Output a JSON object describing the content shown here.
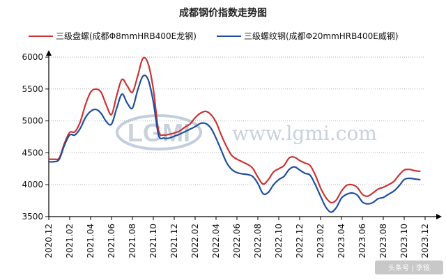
{
  "chart_data": {
    "type": "line",
    "title": "成都钢价指数走势图",
    "xlabel": "",
    "ylabel": "",
    "ylim": [
      3500,
      6000
    ],
    "yticks": [
      3500,
      4000,
      4500,
      5000,
      5500,
      6000
    ],
    "xticks": [
      "2020.12",
      "2021.02",
      "2021.04",
      "2021.06",
      "2021.08",
      "2021.10",
      "2021.12",
      "2022.02",
      "2022.04",
      "2022.06",
      "2022.08",
      "2022.10",
      "2022.12",
      "2023.02",
      "2023.04",
      "2023.06",
      "2023.08",
      "2023.10",
      "2023.12"
    ],
    "x_range_months": [
      0,
      36
    ],
    "grid": "horizontal",
    "legend_position": "top",
    "series": [
      {
        "name": "三级盘螺(成都Φ8mmHRB400E龙钢)",
        "color": "#cc3333",
        "points": [
          [
            0,
            4400
          ],
          [
            0.5,
            4400
          ],
          [
            1,
            4420
          ],
          [
            1.5,
            4650
          ],
          [
            2,
            4820
          ],
          [
            2.5,
            4830
          ],
          [
            3,
            4980
          ],
          [
            3.5,
            5250
          ],
          [
            4,
            5450
          ],
          [
            4.5,
            5500
          ],
          [
            5,
            5450
          ],
          [
            5.5,
            5250
          ],
          [
            6,
            5100
          ],
          [
            6.5,
            5400
          ],
          [
            7,
            5650
          ],
          [
            7.5,
            5550
          ],
          [
            8,
            5450
          ],
          [
            8.5,
            5700
          ],
          [
            9,
            5980
          ],
          [
            9.5,
            5900
          ],
          [
            10,
            5500
          ],
          [
            10.5,
            4850
          ],
          [
            11,
            4780
          ],
          [
            11.5,
            4790
          ],
          [
            12,
            4810
          ],
          [
            12.5,
            4840
          ],
          [
            13,
            4900
          ],
          [
            13.5,
            4950
          ],
          [
            14,
            5050
          ],
          [
            14.5,
            5120
          ],
          [
            15,
            5150
          ],
          [
            15.5,
            5100
          ],
          [
            16,
            4980
          ],
          [
            16.5,
            4780
          ],
          [
            17,
            4600
          ],
          [
            17.5,
            4460
          ],
          [
            18,
            4400
          ],
          [
            18.5,
            4360
          ],
          [
            19,
            4320
          ],
          [
            19.5,
            4260
          ],
          [
            20,
            4120
          ],
          [
            20.5,
            4010
          ],
          [
            21,
            4080
          ],
          [
            21.5,
            4200
          ],
          [
            22,
            4250
          ],
          [
            22.5,
            4300
          ],
          [
            23,
            4420
          ],
          [
            23.5,
            4430
          ],
          [
            24,
            4380
          ],
          [
            24.5,
            4340
          ],
          [
            25,
            4300
          ],
          [
            25.5,
            4150
          ],
          [
            26,
            3950
          ],
          [
            26.5,
            3800
          ],
          [
            27,
            3720
          ],
          [
            27.5,
            3760
          ],
          [
            28,
            3900
          ],
          [
            28.5,
            3990
          ],
          [
            29,
            4000
          ],
          [
            29.5,
            3960
          ],
          [
            30,
            3850
          ],
          [
            30.5,
            3820
          ],
          [
            31,
            3870
          ],
          [
            31.5,
            3930
          ],
          [
            32,
            3960
          ],
          [
            32.5,
            4000
          ],
          [
            33,
            4050
          ],
          [
            33.5,
            4150
          ],
          [
            34,
            4230
          ],
          [
            34.5,
            4240
          ],
          [
            35,
            4220
          ],
          [
            35.5,
            4210
          ]
        ]
      },
      {
        "name": "三级螺纹钢(成都Φ20mmHRB400E威钢)",
        "color": "#1f4e9e",
        "points": [
          [
            0,
            4360
          ],
          [
            0.5,
            4360
          ],
          [
            1,
            4400
          ],
          [
            1.5,
            4620
          ],
          [
            2,
            4780
          ],
          [
            2.5,
            4780
          ],
          [
            3,
            4880
          ],
          [
            3.5,
            5050
          ],
          [
            4,
            5150
          ],
          [
            4.5,
            5180
          ],
          [
            5,
            5120
          ],
          [
            5.5,
            4990
          ],
          [
            6,
            4950
          ],
          [
            6.5,
            5200
          ],
          [
            7,
            5420
          ],
          [
            7.5,
            5280
          ],
          [
            8,
            5200
          ],
          [
            8.5,
            5480
          ],
          [
            9,
            5700
          ],
          [
            9.5,
            5650
          ],
          [
            10,
            5300
          ],
          [
            10.5,
            4780
          ],
          [
            11,
            4730
          ],
          [
            11.5,
            4730
          ],
          [
            12,
            4760
          ],
          [
            12.5,
            4790
          ],
          [
            13,
            4830
          ],
          [
            13.5,
            4870
          ],
          [
            14,
            4910
          ],
          [
            14.5,
            4960
          ],
          [
            15,
            4960
          ],
          [
            15.5,
            4890
          ],
          [
            16,
            4730
          ],
          [
            16.5,
            4540
          ],
          [
            17,
            4350
          ],
          [
            17.5,
            4240
          ],
          [
            18,
            4190
          ],
          [
            18.5,
            4170
          ],
          [
            19,
            4160
          ],
          [
            19.5,
            4130
          ],
          [
            20,
            4020
          ],
          [
            20.5,
            3860
          ],
          [
            21,
            3880
          ],
          [
            21.5,
            4000
          ],
          [
            22,
            4080
          ],
          [
            22.5,
            4130
          ],
          [
            23,
            4240
          ],
          [
            23.5,
            4280
          ],
          [
            24,
            4230
          ],
          [
            24.5,
            4180
          ],
          [
            25,
            4150
          ],
          [
            25.5,
            4000
          ],
          [
            26,
            3820
          ],
          [
            26.5,
            3650
          ],
          [
            27,
            3570
          ],
          [
            27.5,
            3640
          ],
          [
            28,
            3790
          ],
          [
            28.5,
            3850
          ],
          [
            29,
            3870
          ],
          [
            29.5,
            3840
          ],
          [
            30,
            3730
          ],
          [
            30.5,
            3700
          ],
          [
            31,
            3720
          ],
          [
            31.5,
            3780
          ],
          [
            32,
            3800
          ],
          [
            32.5,
            3850
          ],
          [
            33,
            3900
          ],
          [
            33.5,
            3980
          ],
          [
            34,
            4080
          ],
          [
            34.5,
            4100
          ],
          [
            35,
            4090
          ],
          [
            35.5,
            4080
          ]
        ]
      }
    ]
  },
  "watermark": {
    "site_text": "www.lgmi.com",
    "logo_text": "LGMI"
  },
  "credit": "头条号 | 李铭"
}
